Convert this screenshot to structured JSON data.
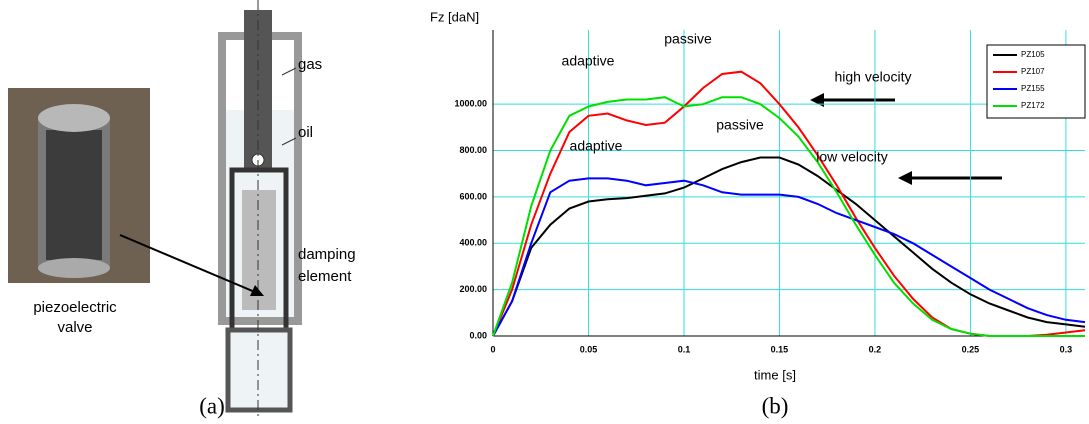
{
  "panel_a": {
    "photo_label": [
      "piezoelectric",
      "valve"
    ],
    "diagram_labels": {
      "gas": "gas",
      "oil": "oil",
      "damping": [
        "damping",
        "element"
      ]
    },
    "caption": "(a)"
  },
  "panel_b": {
    "caption": "(b)"
  },
  "chart_data": {
    "type": "line",
    "ylabel": "Fz [daN]",
    "xlabel": "time [s]",
    "x": [
      0,
      0.01,
      0.02,
      0.03,
      0.04,
      0.05,
      0.06,
      0.07,
      0.08,
      0.09,
      0.1,
      0.11,
      0.12,
      0.13,
      0.14,
      0.15,
      0.16,
      0.17,
      0.18,
      0.19,
      0.2,
      0.21,
      0.22,
      0.23,
      0.24,
      0.25,
      0.26,
      0.27,
      0.28,
      0.29,
      0.3,
      0.31
    ],
    "series": [
      {
        "name": "PZ105",
        "color": "#000000",
        "values": [
          0,
          150,
          380,
          480,
          550,
          580,
          590,
          595,
          605,
          615,
          640,
          680,
          720,
          750,
          770,
          770,
          740,
          690,
          630,
          570,
          500,
          430,
          360,
          290,
          230,
          180,
          140,
          110,
          80,
          60,
          50,
          40
        ]
      },
      {
        "name": "PZ107",
        "color": "#ff0000",
        "values": [
          0,
          200,
          480,
          700,
          880,
          950,
          960,
          930,
          910,
          920,
          990,
          1070,
          1130,
          1140,
          1090,
          1000,
          900,
          780,
          650,
          510,
          380,
          260,
          160,
          80,
          30,
          10,
          0,
          0,
          0,
          5,
          15,
          25
        ]
      },
      {
        "name": "PZ155",
        "color": "#0000ff",
        "values": [
          0,
          150,
          400,
          620,
          670,
          680,
          680,
          670,
          650,
          660,
          670,
          650,
          620,
          610,
          610,
          610,
          600,
          570,
          530,
          500,
          470,
          440,
          400,
          350,
          300,
          250,
          200,
          160,
          120,
          90,
          70,
          60
        ]
      },
      {
        "name": "PZ172",
        "color": "#00e000",
        "values": [
          0,
          230,
          560,
          800,
          950,
          990,
          1010,
          1020,
          1020,
          1030,
          990,
          1000,
          1030,
          1030,
          1000,
          940,
          860,
          750,
          620,
          480,
          350,
          230,
          140,
          70,
          30,
          10,
          0,
          0,
          0,
          0,
          0,
          0
        ]
      }
    ],
    "xlim": [
      0,
      0.31
    ],
    "ylim": [
      0,
      1320
    ],
    "xticks": [
      0,
      0.05,
      0.1,
      0.15,
      0.2,
      0.25,
      0.3
    ],
    "yticks": [
      {
        "value": 0,
        "label": "0.00"
      },
      {
        "value": 200,
        "label": "200.00"
      },
      {
        "value": 400,
        "label": "400.00"
      },
      {
        "value": 600,
        "label": "600.00"
      },
      {
        "value": 800,
        "label": "800.00"
      },
      {
        "value": 1000,
        "label": "1000.00"
      }
    ],
    "grid": true,
    "grid_color": "#33dddd",
    "legend": "upper right",
    "annotations": [
      "adaptive",
      "passive",
      "high velocity",
      "adaptive",
      "passive",
      "low velocity"
    ]
  }
}
